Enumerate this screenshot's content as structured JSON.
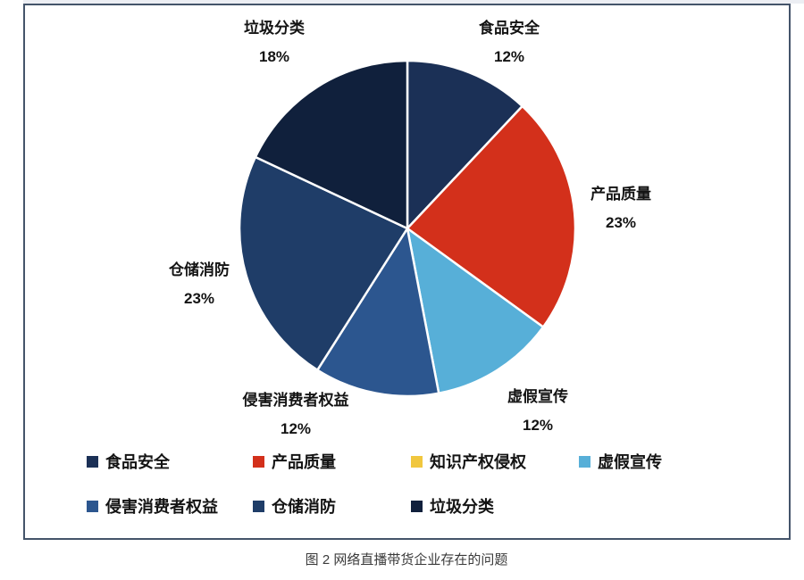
{
  "page": {
    "background": "#ffffff",
    "frame_border_color": "#44546A"
  },
  "caption": {
    "text": "图 2 网络直播带货企业存在的问题"
  },
  "chart_data": {
    "type": "pie",
    "title": "图 2 网络直播带货企业存在的问题",
    "unit": "%",
    "legend_position": "bottom",
    "start_angle_clock": 0,
    "direction": "clockwise",
    "categories": [
      "食品安全",
      "产品质量",
      "知识产权侵权",
      "虚假宣传",
      "侵害消费者权益",
      "仓储消防",
      "垃圾分类"
    ],
    "values": [
      12,
      23,
      0,
      12,
      12,
      23,
      18
    ],
    "colors": [
      "#1B3056",
      "#D3301B",
      "#F1C73E",
      "#57AFD8",
      "#2C568F",
      "#1F3D68",
      "#10203C"
    ],
    "separator_color": "#ffffff",
    "labels": [
      {
        "name": "食品安全",
        "pct": "12%"
      },
      {
        "name": "产品质量",
        "pct": "23%"
      },
      {
        "name": "虚假宣传",
        "pct": "12%"
      },
      {
        "name": "侵害消费者权益",
        "pct": "12%"
      },
      {
        "name": "仓储消防",
        "pct": "23%"
      },
      {
        "name": "垃圾分类",
        "pct": "18%"
      }
    ]
  }
}
